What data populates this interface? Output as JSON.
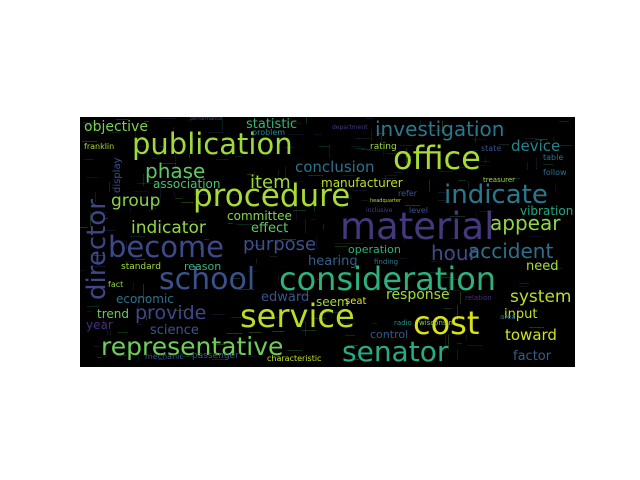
{
  "palette": {
    "purple": "#46327e",
    "blue": "#365c8d",
    "teal": "#277f8e",
    "green": "#1fa187",
    "lime": "#4ac16d",
    "yellowgreen": "#a0da39",
    "yellow": "#d0e11c"
  },
  "words": [
    {
      "text": "publication",
      "color": "#9fda3a"
    },
    {
      "text": "office",
      "color": "#a8db34"
    },
    {
      "text": "procedure",
      "color": "#a8db34"
    },
    {
      "text": "material",
      "color": "#44397c"
    },
    {
      "text": "consideration",
      "color": "#2db27d"
    },
    {
      "text": "school",
      "color": "#3a528b"
    },
    {
      "text": "service",
      "color": "#bade28"
    },
    {
      "text": "cost",
      "color": "#d8e219"
    },
    {
      "text": "representative",
      "color": "#6ece58"
    },
    {
      "text": "senator",
      "color": "#25ac82"
    },
    {
      "text": "director",
      "color": "#3f4788"
    },
    {
      "text": "become",
      "color": "#3e4989"
    },
    {
      "text": "indicate",
      "color": "#2a788e"
    },
    {
      "text": "investigation",
      "color": "#2a778e"
    },
    {
      "text": "phase",
      "color": "#5ec962"
    },
    {
      "text": "item",
      "color": "#9bd93c"
    },
    {
      "text": "group",
      "color": "#84d44b"
    },
    {
      "text": "purpose",
      "color": "#3b528b"
    },
    {
      "text": "indicator",
      "color": "#93d741"
    },
    {
      "text": "appear",
      "color": "#8fd744"
    },
    {
      "text": "accident",
      "color": "#2e6f8e"
    },
    {
      "text": "hour",
      "color": "#3e4c8a"
    },
    {
      "text": "provide",
      "color": "#3f4889"
    },
    {
      "text": "response",
      "color": "#a5db36"
    },
    {
      "text": "system",
      "color": "#bade28"
    },
    {
      "text": "objective",
      "color": "#7ad151"
    },
    {
      "text": "statistic",
      "color": "#35b779"
    },
    {
      "text": "conclusion",
      "color": "#2c718e"
    },
    {
      "text": "device",
      "color": "#24868e"
    },
    {
      "text": "association",
      "color": "#4ac16d"
    },
    {
      "text": "manufacturer",
      "color": "#bddf26"
    },
    {
      "text": "vibration",
      "color": "#22a884"
    },
    {
      "text": "committee",
      "color": "#86d549"
    },
    {
      "text": "effect",
      "color": "#5ec962"
    },
    {
      "text": "hearing",
      "color": "#355f8d"
    },
    {
      "text": "operation",
      "color": "#2db27d"
    },
    {
      "text": "need",
      "color": "#addc30"
    },
    {
      "text": "standard",
      "color": "#a0da39"
    },
    {
      "text": "reason",
      "color": "#31b57b"
    },
    {
      "text": "economic",
      "color": "#2c728e"
    },
    {
      "text": "edward",
      "color": "#3a548c"
    },
    {
      "text": "seem",
      "color": "#9dd93b"
    },
    {
      "text": "seat",
      "color": "#e5e419"
    },
    {
      "text": "trend",
      "color": "#6ccd5a"
    },
    {
      "text": "science",
      "color": "#39568c"
    },
    {
      "text": "year",
      "color": "#472d7b"
    },
    {
      "text": "input",
      "color": "#c2df23"
    },
    {
      "text": "toward",
      "color": "#d2e21b"
    },
    {
      "text": "factor",
      "color": "#365d8d"
    },
    {
      "text": "control",
      "color": "#38588c"
    },
    {
      "text": "passenger",
      "color": "#3a538b"
    },
    {
      "text": "characteristic",
      "color": "#c8e020"
    },
    {
      "text": "display",
      "color": "#3a528b"
    },
    {
      "text": "problem",
      "color": "#23888e"
    },
    {
      "text": "rating",
      "color": "#9bd93c"
    },
    {
      "text": "franklin",
      "color": "#a8db34"
    },
    {
      "text": "fact",
      "color": "#8bd646"
    },
    {
      "text": "state",
      "color": "#3b518b"
    },
    {
      "text": "table",
      "color": "#2c738e"
    },
    {
      "text": "follow",
      "color": "#2c728e"
    },
    {
      "text": "treasurer",
      "color": "#a0da39"
    },
    {
      "text": "relation",
      "color": "#472f7d"
    },
    {
      "text": "radio",
      "color": "#21918c"
    },
    {
      "text": "wisconsin",
      "color": "#7ad151"
    },
    {
      "text": "finding",
      "color": "#2a788e"
    },
    {
      "text": "level",
      "color": "#3a548c"
    },
    {
      "text": "refer",
      "color": "#39568c"
    },
    {
      "text": "mechanic",
      "color": "#3b528b"
    },
    {
      "text": "performance",
      "color": "#3e4a89"
    },
    {
      "text": "department",
      "color": "#453781"
    },
    {
      "text": "area",
      "color": "#2b758e"
    },
    {
      "text": "headquarter",
      "color": "#b5de2b"
    },
    {
      "text": "inclusive",
      "color": "#414487"
    }
  ],
  "filler_colors": [
    "#46327e",
    "#365c8d",
    "#277f8e",
    "#1fa187",
    "#4ac16d",
    "#a0da39",
    "#3b528b",
    "#2c728e"
  ]
}
